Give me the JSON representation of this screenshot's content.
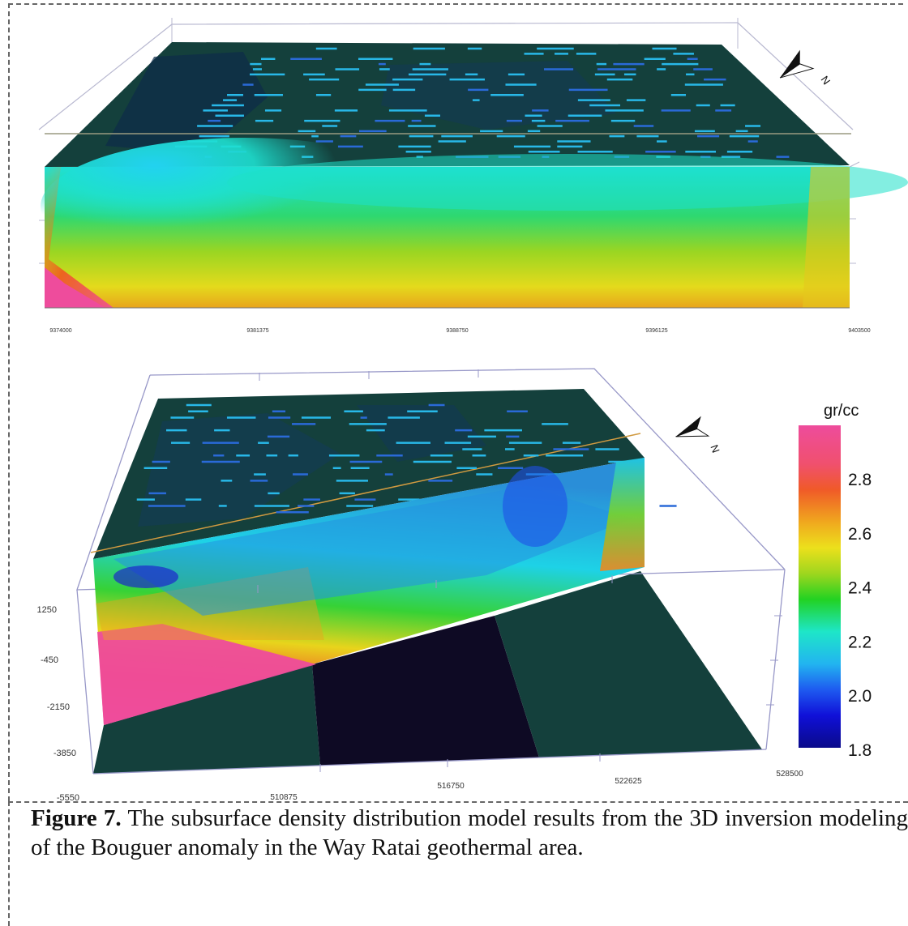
{
  "upper_model": {
    "bottom_axis_ticks": [
      "9374000",
      "9381375",
      "9388750",
      "9396125",
      "9403500"
    ]
  },
  "lower_model": {
    "depth_ticks": [
      "1250",
      "-450",
      "-2150",
      "-3850",
      "-5550"
    ],
    "easting_ticks": [
      "510875",
      "516750",
      "522625",
      "528500"
    ]
  },
  "colorbar": {
    "unit": "gr/cc",
    "ticks": [
      "2.8",
      "2.6",
      "2.4",
      "2.2",
      "2.0",
      "1.8"
    ],
    "colors": [
      "#ee4c9c",
      "#f05a28",
      "#f0a81e",
      "#ece01c",
      "#9ed61e",
      "#22d222",
      "#1ee6c8",
      "#22b4f0",
      "#1e5af0",
      "#1010d8",
      "#0a0a8a"
    ]
  },
  "north_arrow_letter": "N",
  "caption": {
    "label": "Figure 7.",
    "text": " The subsurface density distribution model results from the 3D inversion modeling of the Bouguer anomaly in the Way Ratai geothermal area."
  }
}
